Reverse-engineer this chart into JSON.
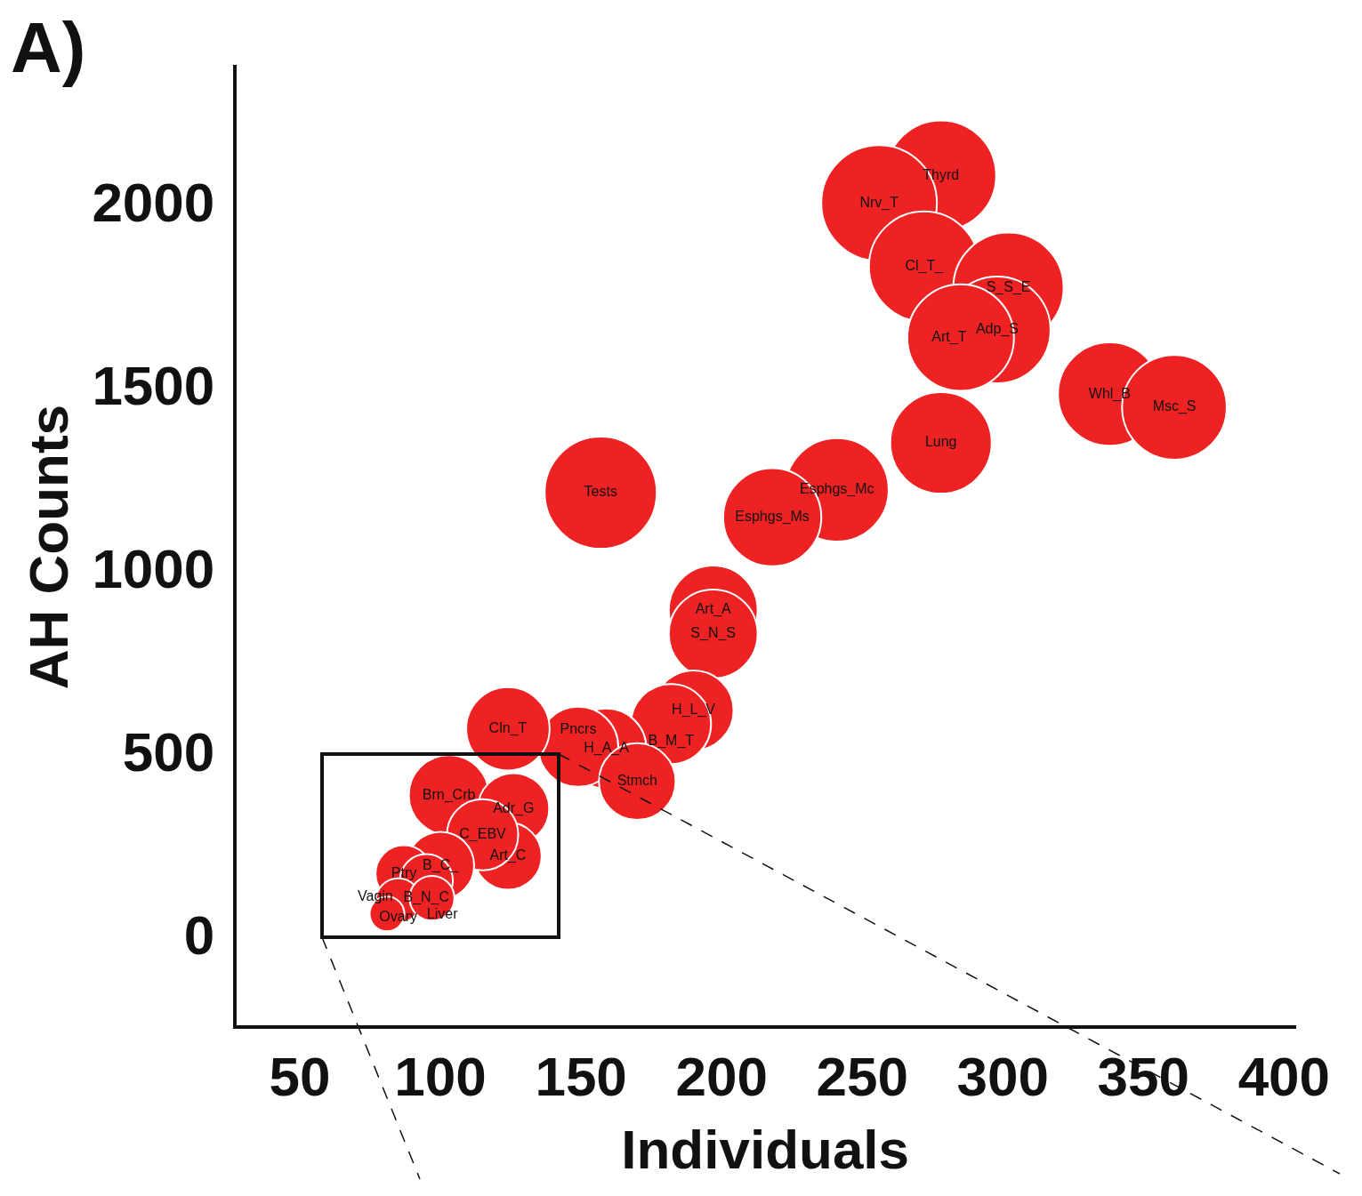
{
  "chart_data": {
    "type": "bubble",
    "xlabel": "Individuals",
    "ylabel": "AH Counts",
    "xlim": [
      27,
      404
    ],
    "ylim": [
      -240,
      2380
    ],
    "xticks": [
      50,
      100,
      150,
      200,
      250,
      300,
      350,
      400
    ],
    "yticks": [
      0,
      500,
      1000,
      1500,
      2000
    ],
    "grid": false,
    "series": [
      {
        "color": "#ee2222",
        "x": [
          278,
          256,
          272,
          302,
          298,
          285,
          338,
          361,
          278,
          157,
          241,
          218,
          197,
          197,
          190,
          182,
          159,
          149,
          170,
          124,
          103,
          126,
          124,
          115,
          100,
          87,
          95,
          85,
          97,
          81
        ],
        "values": [
          2083,
          2008,
          1835,
          1777,
          1662,
          1641,
          1487,
          1451,
          1354,
          1218,
          1226,
          1151,
          898,
          833,
          624,
          587,
          520,
          525,
          430,
          574,
          393,
          356,
          227,
          285,
          201,
          179,
          160,
          105,
          112,
          69
        ],
        "sizes": [
          0.91,
          1,
          0.91,
          0.91,
          0.85,
          0.85,
          0.8,
          0.82,
          0.77,
          0.94,
          0.8,
          0.72,
          0.59,
          0.59,
          0.48,
          0.48,
          0.48,
          0.48,
          0.44,
          0.52,
          0.48,
          0.38,
          0.34,
          0.38,
          0.34,
          0.24,
          0.21,
          0.15,
          0.15,
          0.09
        ]
      }
    ],
    "annotations": [
      "A)",
      {
        "text": "Thyrd",
        "x": 278,
        "y": 2083
      },
      {
        "text": "Nrv_T",
        "x": 256,
        "y": 2008
      },
      {
        "text": "Cl_T_",
        "x": 272,
        "y": 1835
      },
      {
        "text": "S_S_E",
        "x": 302,
        "y": 1777
      },
      {
        "text": "Adp_S",
        "x": 298,
        "y": 1662
      },
      {
        "text": "Art_T",
        "x": 285,
        "y": 1641
      },
      {
        "text": "Whl_B",
        "x": 338,
        "y": 1487
      },
      {
        "text": "Msc_S",
        "x": 361,
        "y": 1451
      },
      {
        "text": "Lung",
        "x": 278,
        "y": 1354
      },
      {
        "text": "Tests",
        "x": 157,
        "y": 1218
      },
      {
        "text": "Esphgs_Mc",
        "x": 241,
        "y": 1226
      },
      {
        "text": "Esphgs_Ms",
        "x": 218,
        "y": 1151
      },
      {
        "text": "Art_A",
        "x": 197,
        "y": 898
      },
      {
        "text": "S_N_S",
        "x": 197,
        "y": 833
      },
      {
        "text": "H_L_V",
        "x": 190,
        "y": 624
      },
      {
        "text": "B_M_T",
        "x": 182,
        "y": 587
      },
      {
        "text": "H_A_A",
        "x": 159,
        "y": 520
      },
      {
        "text": "Pncrs",
        "x": 149,
        "y": 525
      },
      {
        "text": "Stmch",
        "x": 170,
        "y": 430
      },
      {
        "text": "Cln_T",
        "x": 124,
        "y": 574
      },
      {
        "text": "Brn_Crb",
        "x": 103,
        "y": 393
      },
      {
        "text": "Adr_G",
        "x": 126,
        "y": 356
      },
      {
        "text": "Art_C",
        "x": 124,
        "y": 227
      },
      {
        "text": "C_EBV",
        "x": 115,
        "y": 285
      },
      {
        "text": "B_C_",
        "x": 100,
        "y": 201
      },
      {
        "text": "Ptry",
        "x": 87,
        "y": 179
      },
      {
        "text": "B_N_C",
        "x": 95,
        "y": 160
      },
      {
        "text": "Ovary",
        "x": 85,
        "y": 105
      },
      {
        "text": "Liver",
        "x": 97,
        "y": 112
      },
      {
        "text": "Vagin",
        "x": 81,
        "y": 69
      }
    ]
  }
}
